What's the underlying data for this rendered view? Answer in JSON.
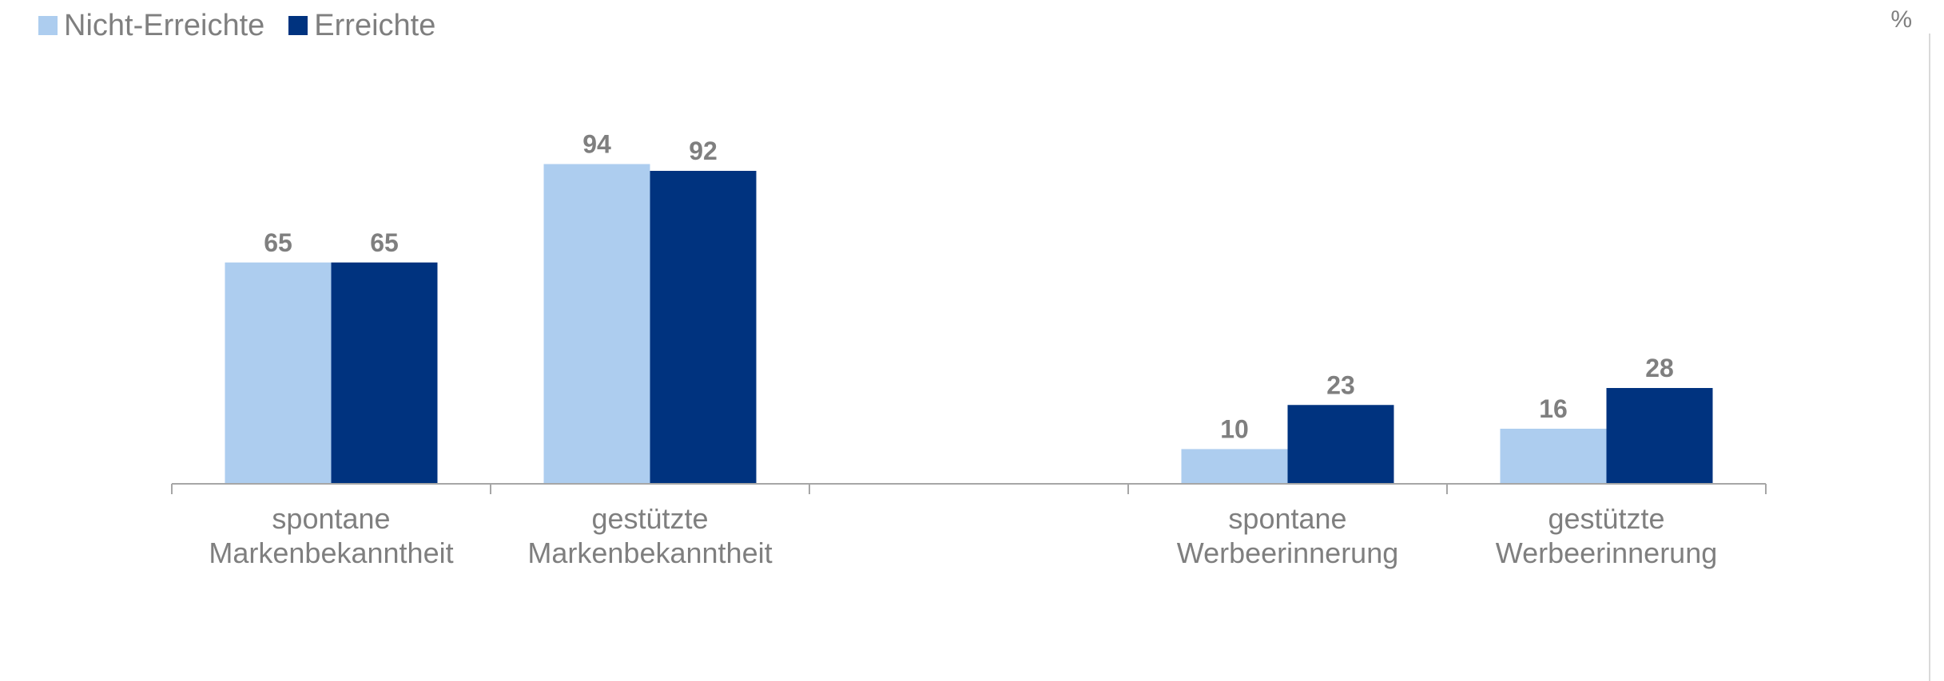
{
  "chart_data": {
    "type": "bar",
    "unit_label": "%",
    "categories": [
      {
        "line1": "spontane",
        "line2": "Markenbekanntheit"
      },
      {
        "line1": "gestützte",
        "line2": "Markenbekanntheit"
      },
      {
        "line1": "",
        "line2": ""
      },
      {
        "line1": "spontane",
        "line2": "Werbeerinnerung"
      },
      {
        "line1": "gestützte",
        "line2": "Werbeerinnerung"
      }
    ],
    "series": [
      {
        "name": "Nicht-Erreichte",
        "color": "#adcdef",
        "values": [
          65,
          94,
          null,
          10,
          16
        ]
      },
      {
        "name": "Erreichte",
        "color": "#00337f",
        "values": [
          65,
          92,
          null,
          23,
          28
        ]
      }
    ],
    "ylim": [
      0,
      100
    ],
    "grid": false,
    "legend_position": "top-left",
    "data_label_color": "#7f7f7f",
    "axis_color": "#a6a6a6",
    "text_color": "#7f7f7f"
  }
}
